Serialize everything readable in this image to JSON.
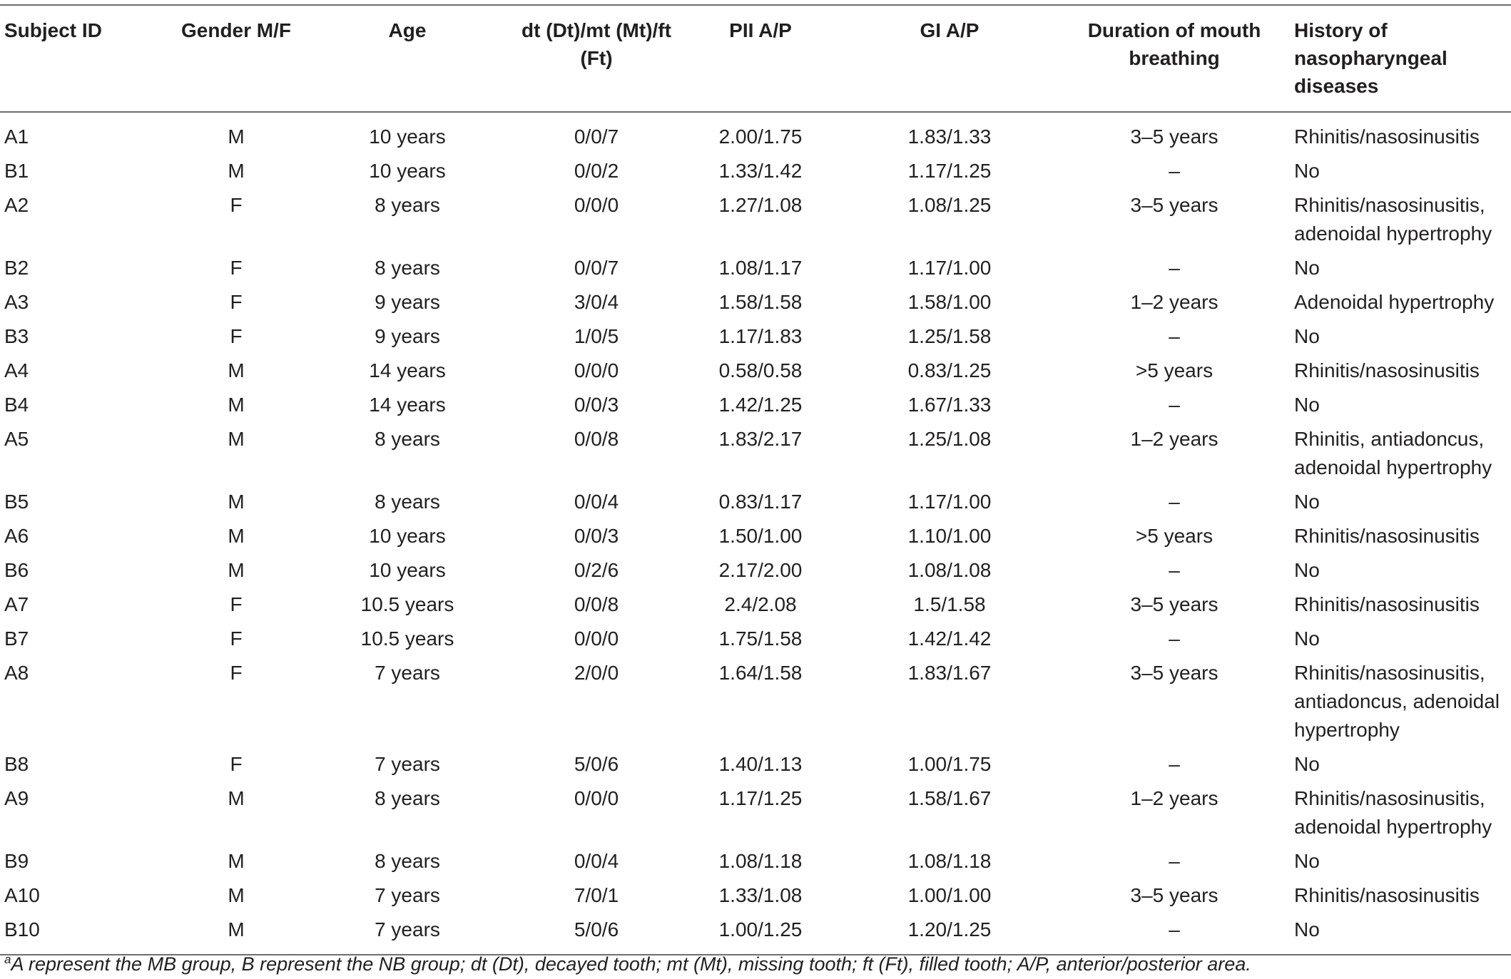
{
  "table": {
    "headers": {
      "subject_id": "Subject ID",
      "gender": "Gender M/F",
      "age": "Age",
      "dmft": "dt (Dt)/mt (Mt)/ft (Ft)",
      "pii": "PII A/P",
      "gi": "GI A/P",
      "duration": "Duration of mouth breathing",
      "history": "History of nasopharyngeal diseases"
    },
    "rows": [
      {
        "id": "A1",
        "gender": "M",
        "age": "10 years",
        "dmft": "0/0/7",
        "pii": "2.00/1.75",
        "gi": "1.83/1.33",
        "duration": "3–5 years",
        "history": "Rhinitis/nasosinusitis"
      },
      {
        "id": "B1",
        "gender": "M",
        "age": "10 years",
        "dmft": "0/0/2",
        "pii": "1.33/1.42",
        "gi": "1.17/1.25",
        "duration": "–",
        "history": "No"
      },
      {
        "id": "A2",
        "gender": "F",
        "age": "8 years",
        "dmft": "0/0/0",
        "pii": "1.27/1.08",
        "gi": "1.08/1.25",
        "duration": "3–5 years",
        "history": "Rhinitis/nasosinusitis, adenoidal hypertrophy"
      },
      {
        "id": "B2",
        "gender": "F",
        "age": "8 years",
        "dmft": "0/0/7",
        "pii": "1.08/1.17",
        "gi": "1.17/1.00",
        "duration": "–",
        "history": "No"
      },
      {
        "id": "A3",
        "gender": "F",
        "age": "9 years",
        "dmft": "3/0/4",
        "pii": "1.58/1.58",
        "gi": "1.58/1.00",
        "duration": "1–2 years",
        "history": "Adenoidal hypertrophy"
      },
      {
        "id": "B3",
        "gender": "F",
        "age": "9 years",
        "dmft": "1/0/5",
        "pii": "1.17/1.83",
        "gi": "1.25/1.58",
        "duration": "–",
        "history": "No"
      },
      {
        "id": "A4",
        "gender": "M",
        "age": "14 years",
        "dmft": "0/0/0",
        "pii": "0.58/0.58",
        "gi": "0.83/1.25",
        "duration": ">5 years",
        "history": "Rhinitis/nasosinusitis"
      },
      {
        "id": "B4",
        "gender": "M",
        "age": "14 years",
        "dmft": "0/0/3",
        "pii": "1.42/1.25",
        "gi": "1.67/1.33",
        "duration": "–",
        "history": "No"
      },
      {
        "id": "A5",
        "gender": "M",
        "age": "8 years",
        "dmft": "0/0/8",
        "pii": "1.83/2.17",
        "gi": "1.25/1.08",
        "duration": "1–2 years",
        "history": "Rhinitis, antiadoncus, adenoidal hypertrophy"
      },
      {
        "id": "B5",
        "gender": "M",
        "age": "8 years",
        "dmft": "0/0/4",
        "pii": "0.83/1.17",
        "gi": "1.17/1.00",
        "duration": "–",
        "history": "No"
      },
      {
        "id": "A6",
        "gender": "M",
        "age": "10 years",
        "dmft": "0/0/3",
        "pii": "1.50/1.00",
        "gi": "1.10/1.00",
        "duration": ">5 years",
        "history": "Rhinitis/nasosinusitis"
      },
      {
        "id": "B6",
        "gender": "M",
        "age": "10 years",
        "dmft": "0/2/6",
        "pii": "2.17/2.00",
        "gi": "1.08/1.08",
        "duration": "–",
        "history": "No"
      },
      {
        "id": "A7",
        "gender": "F",
        "age": "10.5 years",
        "dmft": "0/0/8",
        "pii": "2.4/2.08",
        "gi": "1.5/1.58",
        "duration": "3–5 years",
        "history": "Rhinitis/nasosinusitis"
      },
      {
        "id": "B7",
        "gender": "F",
        "age": "10.5 years",
        "dmft": "0/0/0",
        "pii": "1.75/1.58",
        "gi": "1.42/1.42",
        "duration": "–",
        "history": "No"
      },
      {
        "id": "A8",
        "gender": "F",
        "age": "7 years",
        "dmft": "2/0/0",
        "pii": "1.64/1.58",
        "gi": "1.83/1.67",
        "duration": "3–5 years",
        "history": "Rhinitis/nasosinusitis, antiadoncus, adenoidal hypertrophy"
      },
      {
        "id": "B8",
        "gender": "F",
        "age": "7 years",
        "dmft": "5/0/6",
        "pii": "1.40/1.13",
        "gi": "1.00/1.75",
        "duration": "–",
        "history": "No"
      },
      {
        "id": "A9",
        "gender": "M",
        "age": "8 years",
        "dmft": "0/0/0",
        "pii": "1.17/1.25",
        "gi": "1.58/1.67",
        "duration": "1–2 years",
        "history": "Rhinitis/nasosinusitis, adenoidal hypertrophy"
      },
      {
        "id": "B9",
        "gender": "M",
        "age": "8 years",
        "dmft": "0/0/4",
        "pii": "1.08/1.18",
        "gi": "1.08/1.18",
        "duration": "–",
        "history": "No"
      },
      {
        "id": "A10",
        "gender": "M",
        "age": "7 years",
        "dmft": "7/0/1",
        "pii": "1.33/1.08",
        "gi": "1.00/1.00",
        "duration": "3–5 years",
        "history": "Rhinitis/nasosinusitis"
      },
      {
        "id": "B10",
        "gender": "M",
        "age": "7 years",
        "dmft": "5/0/6",
        "pii": "1.00/1.25",
        "gi": "1.20/1.25",
        "duration": "–",
        "history": "No"
      }
    ]
  },
  "footnote": {
    "marker": "a",
    "text": "A represent the MB group, B represent the NB group; dt (Dt), decayed tooth; mt (Mt), missing tooth; ft (Ft), filled tooth; A/P, anterior/posterior area."
  }
}
